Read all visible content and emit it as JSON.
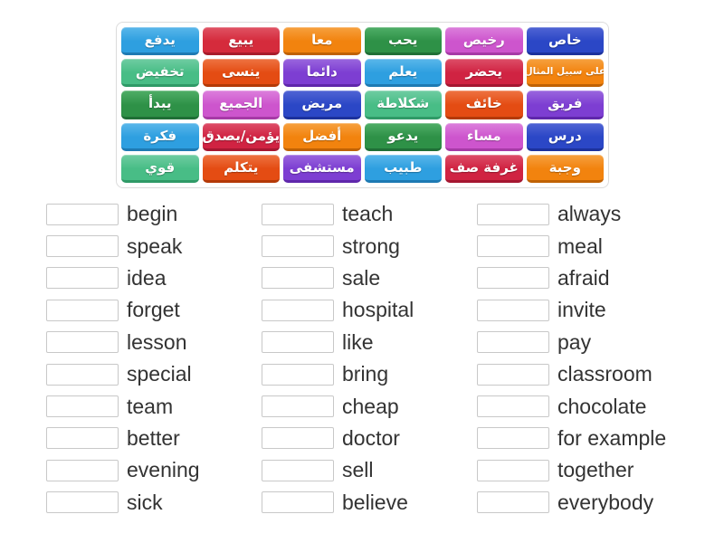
{
  "palette": {
    "lightblue": {
      "base": "#2e9fe0",
      "light": "#5ab7ea",
      "dark": "#1e7ab3"
    },
    "red": {
      "base": "#d52b3c",
      "light": "#e05364",
      "dark": "#a81c2b"
    },
    "orange": {
      "base": "#f2830e",
      "light": "#f6a13f",
      "dark": "#c06204"
    },
    "green": {
      "base": "#2e9147",
      "light": "#4fae67",
      "dark": "#1f6f36"
    },
    "orchid": {
      "base": "#cd55cd",
      "light": "#dc7fdc",
      "dark": "#a63aa6"
    },
    "royalblue": {
      "base": "#2b47c6",
      "light": "#5064d4",
      "dark": "#1c319c"
    },
    "emerald": {
      "base": "#48bd86",
      "light": "#6fcda2",
      "dark": "#2f9a67"
    },
    "vermilion": {
      "base": "#e44c13",
      "light": "#ee7342",
      "dark": "#b43a08"
    },
    "purple": {
      "base": "#7d3ed2",
      "light": "#9a66de",
      "dark": "#5f27ab"
    },
    "crimson": {
      "base": "#d02342",
      "light": "#dd4e68",
      "dark": "#a51731"
    }
  },
  "tiles": [
    {
      "text": "يدفع",
      "color": "lightblue"
    },
    {
      "text": "يبيع",
      "color": "red"
    },
    {
      "text": "معا",
      "color": "orange"
    },
    {
      "text": "يحب",
      "color": "green"
    },
    {
      "text": "رخيص",
      "color": "orchid"
    },
    {
      "text": "خاص",
      "color": "royalblue"
    },
    {
      "text": "تخفيض",
      "color": "emerald"
    },
    {
      "text": "ينسى",
      "color": "vermilion"
    },
    {
      "text": "دائما",
      "color": "purple"
    },
    {
      "text": "يعلم",
      "color": "lightblue"
    },
    {
      "text": "يحضر",
      "color": "crimson"
    },
    {
      "text": "على سبيل المثال",
      "color": "orange",
      "small": true
    },
    {
      "text": "يبدأ",
      "color": "green"
    },
    {
      "text": "الجميع",
      "color": "orchid"
    },
    {
      "text": "مريض",
      "color": "royalblue"
    },
    {
      "text": "شكلاطة",
      "color": "emerald"
    },
    {
      "text": "خائف",
      "color": "vermilion"
    },
    {
      "text": "فريق",
      "color": "purple"
    },
    {
      "text": "فكرة",
      "color": "lightblue"
    },
    {
      "text": "يؤمن/يصدق",
      "color": "crimson"
    },
    {
      "text": "أفضل",
      "color": "orange"
    },
    {
      "text": "يدعو",
      "color": "green"
    },
    {
      "text": "مساء",
      "color": "orchid"
    },
    {
      "text": "درس",
      "color": "royalblue"
    },
    {
      "text": "قوي",
      "color": "emerald"
    },
    {
      "text": "يتكلم",
      "color": "vermilion"
    },
    {
      "text": "مستشفى",
      "color": "purple"
    },
    {
      "text": "طبيب",
      "color": "lightblue"
    },
    {
      "text": "غرفة صف",
      "color": "crimson"
    },
    {
      "text": "وجبة",
      "color": "orange"
    }
  ],
  "word_list": {
    "columns": [
      {
        "items": [
          "begin",
          "speak",
          "idea",
          "forget",
          "lesson",
          "special",
          "team",
          "better",
          "evening",
          "sick"
        ]
      },
      {
        "items": [
          "teach",
          "strong",
          "sale",
          "hospital",
          "like",
          "bring",
          "cheap",
          "doctor",
          "sell",
          "believe"
        ]
      },
      {
        "items": [
          "always",
          "meal",
          "afraid",
          "invite",
          "pay",
          "classroom",
          "chocolate",
          "for example",
          "together",
          "everybody"
        ]
      }
    ]
  }
}
